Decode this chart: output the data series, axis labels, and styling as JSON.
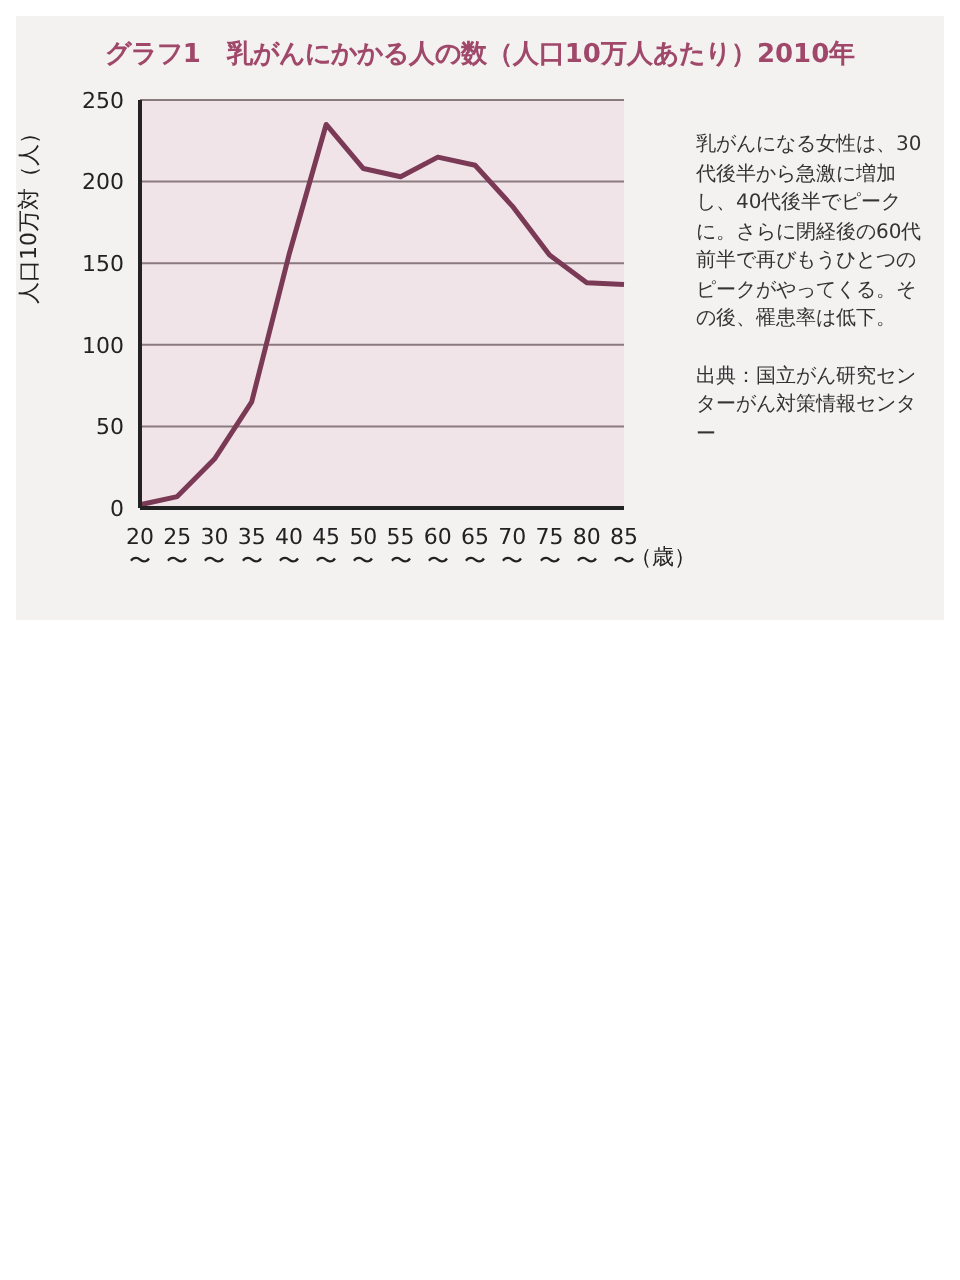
{
  "chart_data": {
    "type": "line",
    "title": "グラフ1　乳がんにかかる人の数（人口10万人あたり）2010年",
    "categories": [
      "20〜",
      "25〜",
      "30〜",
      "35〜",
      "40〜",
      "45〜",
      "50〜",
      "55〜",
      "60〜",
      "65〜",
      "70〜",
      "75〜",
      "80〜",
      "85〜"
    ],
    "series": [
      {
        "color": "#7a3a55",
        "values": [
          2,
          7,
          30,
          65,
          155,
          235,
          208,
          203,
          215,
          210,
          185,
          155,
          138,
          137
        ]
      }
    ],
    "xlabel": "（歳）",
    "ylabel": "人口10万対（人）",
    "ylim": [
      0,
      250
    ],
    "yticks": [
      0,
      50,
      100,
      150,
      200,
      250
    ],
    "grid": "y",
    "marker": "none",
    "line_style": "solid",
    "annotations": [
      "乳がんになる女性は、30代後半から急激に増加し、40代後半でピークに。さらに閉経後の60代前半で再びもうひとつのピークがやってくる。その後、罹患率は低下。",
      "出典：国立がん研究センターがん対策情報センター"
    ]
  }
}
